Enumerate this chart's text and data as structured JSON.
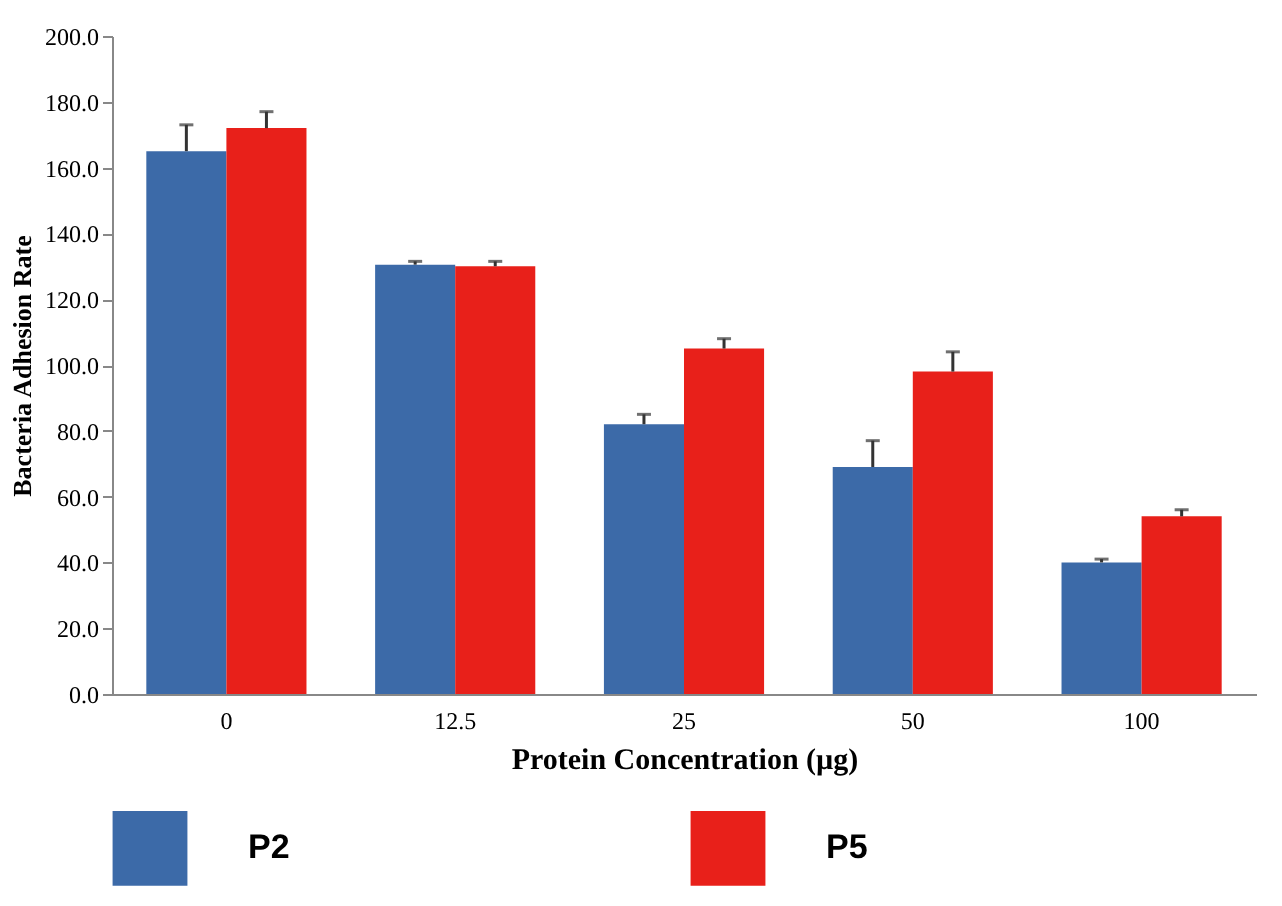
{
  "chart_data": {
    "type": "bar",
    "xlabel": "Protein Concentration (µg)",
    "ylabel": "Bacteria Adhesion Rate",
    "categories": [
      "0",
      "12.5",
      "25",
      "50",
      "100"
    ],
    "series": [
      {
        "name": "P2",
        "color": "#3c6aa8",
        "values": [
          165,
          130.5,
          82,
          69,
          40
        ],
        "errors": [
          [
            165,
            173
          ],
          [
            130.5,
            131.5
          ],
          [
            82,
            85
          ],
          [
            69,
            77
          ],
          [
            40,
            41
          ]
        ]
      },
      {
        "name": "P5",
        "color": "#e8201a",
        "values": [
          172,
          130,
          105,
          98,
          54
        ],
        "errors": [
          [
            172,
            177
          ],
          [
            130,
            131.5
          ],
          [
            105,
            108
          ],
          [
            98,
            104
          ],
          [
            54,
            56
          ]
        ]
      }
    ],
    "ylim": [
      0,
      200
    ],
    "yticks": [
      {
        "value": 0,
        "label": "0.0"
      },
      {
        "value": 20,
        "label": "20.0"
      },
      {
        "value": 40,
        "label": "40.0"
      },
      {
        "value": 60,
        "label": "60.0"
      },
      {
        "value": 80,
        "label": "80.0"
      },
      {
        "value": 100,
        "label": "100.0"
      },
      {
        "value": 120,
        "label": "120.0"
      },
      {
        "value": 140,
        "label": "140.0"
      },
      {
        "value": 160,
        "label": "160.0"
      },
      {
        "value": 180,
        "label": "180.0"
      },
      {
        "value": 200,
        "label": "200.0"
      }
    ],
    "grid": false,
    "legend": "bottom"
  }
}
